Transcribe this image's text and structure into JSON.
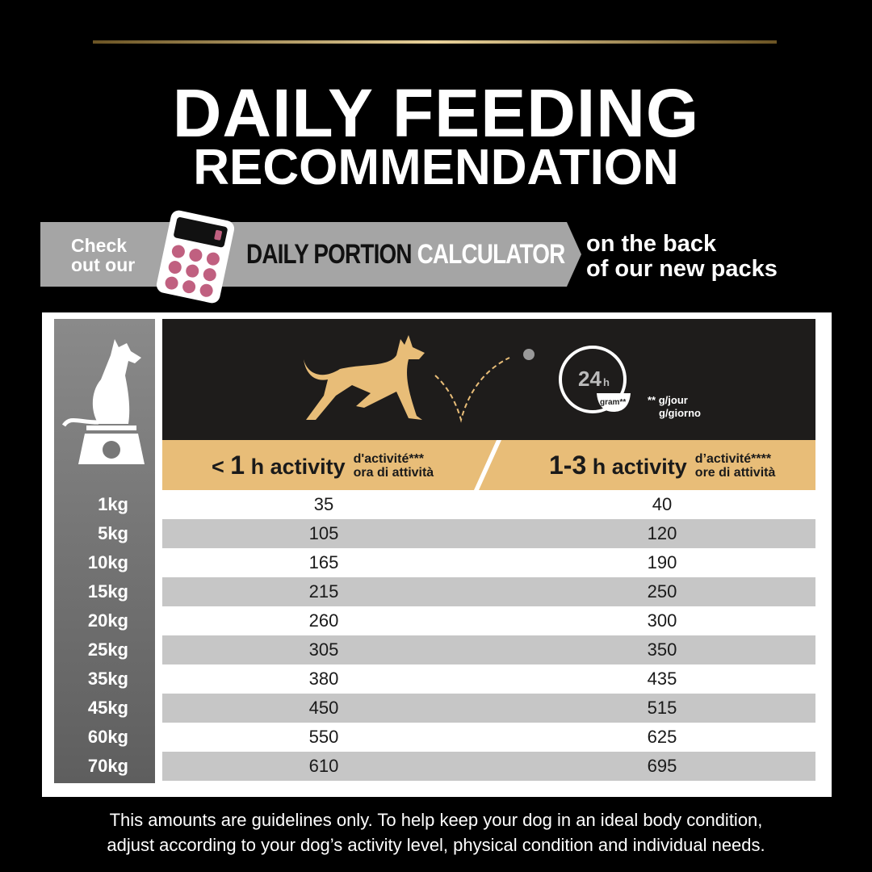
{
  "title": {
    "line1": "DAILY FEEDING",
    "line2": "RECOMMENDATION"
  },
  "banner": {
    "check": "Check",
    "out": "out our",
    "dpc_a": "DAILY PORTION",
    "dpc_b": "CALCULATOR",
    "back1": "on the back",
    "back2": "of our new packs"
  },
  "header": {
    "clock": "24",
    "clock_h": "h",
    "gram": "gram**",
    "unit1": "** g/jour",
    "unit2": "g/giorno"
  },
  "columns": [
    {
      "prefix": "< ",
      "num": "1",
      "label": " h activity",
      "fr": "d'activité***",
      "it": "ora di attività"
    },
    {
      "prefix": "",
      "num": "1-3",
      "label": " h activity",
      "fr": "d’activité****",
      "it": "ore di attività"
    }
  ],
  "rows": [
    {
      "weight": "1kg",
      "low": "35",
      "high": "40"
    },
    {
      "weight": "5kg",
      "low": "105",
      "high": "120"
    },
    {
      "weight": "10kg",
      "low": "165",
      "high": "190"
    },
    {
      "weight": "15kg",
      "low": "215",
      "high": "250"
    },
    {
      "weight": "20kg",
      "low": "260",
      "high": "300"
    },
    {
      "weight": "25kg",
      "low": "305",
      "high": "350"
    },
    {
      "weight": "35kg",
      "low": "380",
      "high": "435"
    },
    {
      "weight": "45kg",
      "low": "450",
      "high": "515"
    },
    {
      "weight": "60kg",
      "low": "550",
      "high": "625"
    },
    {
      "weight": "70kg",
      "low": "610",
      "high": "695"
    }
  ],
  "footer": {
    "line1": "This amounts are guidelines only. To help keep your dog in an ideal body condition,",
    "line2": "adjust according to your dog’s activity level, physical condition and individual needs."
  },
  "colors": {
    "tan": "#e8bd78",
    "accent": "#c06080",
    "row_alt": "#c6c6c6"
  }
}
